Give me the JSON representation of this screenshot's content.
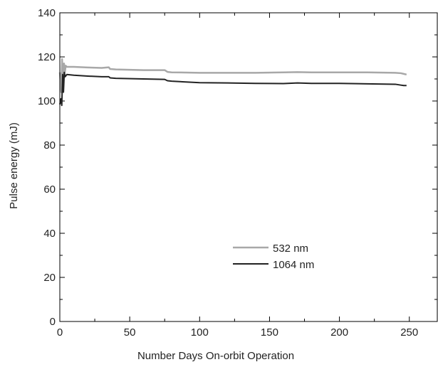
{
  "chart_data": {
    "type": "line",
    "title": "",
    "xlabel": "Number Days On-orbit Operation",
    "ylabel": "Pulse energy (mJ)",
    "xlim": [
      0,
      270
    ],
    "ylim": [
      0,
      140
    ],
    "xticks": [
      0,
      50,
      100,
      150,
      200,
      250
    ],
    "yticks": [
      0,
      20,
      40,
      60,
      80,
      100,
      120,
      140
    ],
    "grid": false,
    "legend_position": "lower-center",
    "series": [
      {
        "name": "532 nm",
        "color": "#a8a8a8",
        "x": [
          0,
          1.0,
          1.6,
          2.2,
          3.0,
          3.6,
          4.2,
          5,
          10,
          20,
          30,
          35,
          36,
          40,
          60,
          75,
          77,
          80,
          100,
          120,
          140,
          160,
          170,
          180,
          200,
          220,
          240,
          244,
          246,
          248
        ],
        "y": [
          113,
          104,
          119,
          111,
          117,
          113,
          116,
          115.5,
          115.5,
          115.2,
          115,
          115.3,
          114.5,
          114.3,
          114,
          114,
          113.2,
          113,
          112.8,
          112.8,
          112.8,
          113,
          113.1,
          113,
          113,
          113,
          112.8,
          112.6,
          112.3,
          112
        ]
      },
      {
        "name": "1064 nm",
        "color": "#222222",
        "x": [
          0,
          0.8,
          1.4,
          2.0,
          2.6,
          3.2,
          3.8,
          5,
          10,
          20,
          30,
          35,
          36,
          40,
          60,
          75,
          77,
          80,
          100,
          120,
          140,
          160,
          170,
          180,
          200,
          220,
          240,
          244,
          246,
          248
        ],
        "y": [
          98.5,
          101,
          98,
          112,
          104,
          113,
          111,
          112,
          111.7,
          111.3,
          111,
          111,
          110.5,
          110.3,
          110,
          109.8,
          109.2,
          109,
          108.3,
          108.2,
          108,
          107.9,
          108.2,
          108,
          108,
          107.8,
          107.6,
          107.2,
          107,
          107
        ]
      }
    ]
  }
}
